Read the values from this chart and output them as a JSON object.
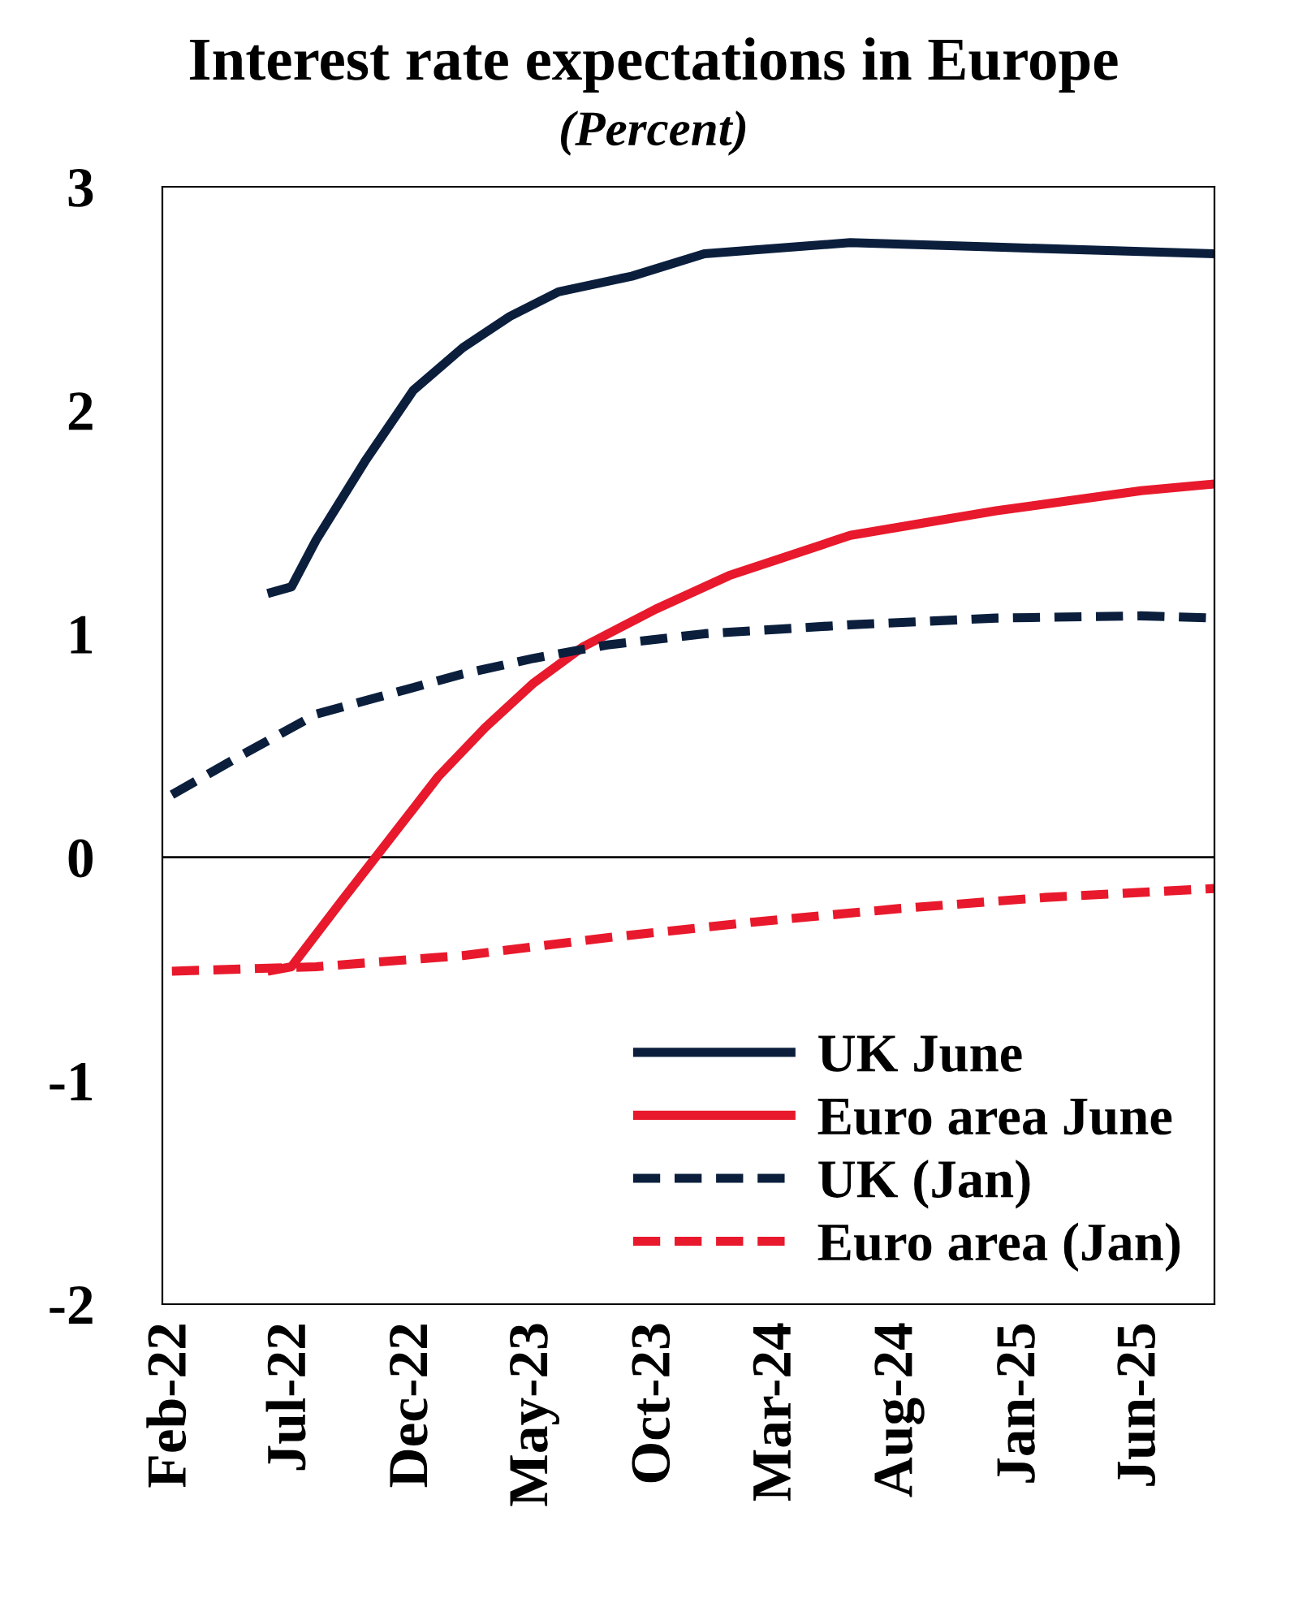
{
  "chart_data": {
    "type": "line",
    "title": "Interest rate expectations in Europe",
    "subtitle": "(Percent)",
    "series": [
      {
        "name": "UK June",
        "color": "#0b1f3d",
        "line_style": "solid",
        "x": [
          "2022-06",
          "2022-07",
          "2022-08",
          "2022-10",
          "2022-12",
          "2023-02",
          "2023-04",
          "2023-06",
          "2023-09",
          "2023-12",
          "2024-06",
          "2024-12",
          "2025-06",
          "2025-09"
        ],
        "values": [
          1.18,
          1.21,
          1.42,
          1.77,
          2.09,
          2.28,
          2.42,
          2.53,
          2.6,
          2.7,
          2.75,
          2.73,
          2.71,
          2.7
        ]
      },
      {
        "name": "Euro area June",
        "color": "#e8192c",
        "line_style": "solid",
        "x": [
          "2022-06",
          "2022-07",
          "2022-09",
          "2022-11",
          "2023-01",
          "2023-03",
          "2023-05",
          "2023-07",
          "2023-10",
          "2024-01",
          "2024-06",
          "2024-12",
          "2025-06",
          "2025-09"
        ],
        "values": [
          -0.51,
          -0.49,
          -0.2,
          0.08,
          0.36,
          0.58,
          0.78,
          0.94,
          1.11,
          1.26,
          1.44,
          1.55,
          1.64,
          1.67
        ]
      },
      {
        "name": "UK (Jan)",
        "color": "#0b1f3d",
        "line_style": "dashed",
        "x": [
          "2022-02",
          "2022-05",
          "2022-08",
          "2022-11",
          "2023-02",
          "2023-05",
          "2023-08",
          "2023-12",
          "2024-06",
          "2024-12",
          "2025-06",
          "2025-09"
        ],
        "values": [
          0.28,
          0.46,
          0.64,
          0.73,
          0.82,
          0.89,
          0.95,
          1.0,
          1.04,
          1.07,
          1.08,
          1.07
        ]
      },
      {
        "name": "Euro area (Jan)",
        "color": "#e8192c",
        "line_style": "dashed",
        "x": [
          "2022-02",
          "2022-08",
          "2023-02",
          "2023-08",
          "2024-02",
          "2024-08",
          "2025-02",
          "2025-09"
        ],
        "values": [
          -0.51,
          -0.49,
          -0.44,
          -0.36,
          -0.29,
          -0.23,
          -0.18,
          -0.14
        ]
      }
    ],
    "xlim": [
      "2022-01-20",
      "2025-09-01"
    ],
    "xticks": [
      {
        "value": "2022-02",
        "label": "Feb-22"
      },
      {
        "value": "2022-07",
        "label": "Jul-22"
      },
      {
        "value": "2022-12",
        "label": "Dec-22"
      },
      {
        "value": "2023-05",
        "label": "May-23"
      },
      {
        "value": "2023-10",
        "label": "Oct-23"
      },
      {
        "value": "2024-03",
        "label": "Mar-24"
      },
      {
        "value": "2024-08",
        "label": "Aug-24"
      },
      {
        "value": "2025-01",
        "label": "Jan-25"
      },
      {
        "value": "2025-06",
        "label": "Jun-25"
      }
    ],
    "ylim": [
      -2,
      3
    ],
    "yticks": [
      -2,
      -1,
      0,
      1,
      2,
      3
    ],
    "ref_lines": [
      {
        "axis": "y",
        "value": 0,
        "color": "#000000",
        "line_style": "solid"
      }
    ],
    "grid": false,
    "legend": "bottom right",
    "marker": "none"
  }
}
